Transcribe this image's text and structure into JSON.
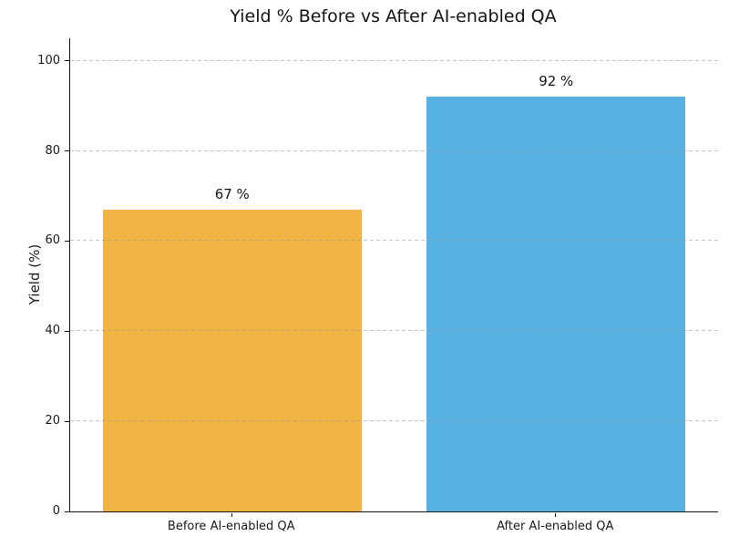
{
  "chart_data": {
    "type": "bar",
    "title": "Yield % Before vs After AI-enabled QA",
    "categories": [
      "Before AI-enabled QA",
      "After AI-enabled QA"
    ],
    "values": [
      67,
      92
    ],
    "value_labels": [
      "67 %",
      "92 %"
    ],
    "bar_colors": [
      "#F2B444",
      "#57B1E2"
    ],
    "xlabel": "",
    "ylabel": "Yield (%)",
    "ylim": [
      0,
      105
    ],
    "yticks": [
      0,
      20,
      40,
      60,
      80,
      100
    ],
    "bar_width_fraction": 0.8,
    "grid": {
      "axis": "y",
      "style": "dashed",
      "color": "#c9c9c9",
      "drawn_above_bars": true
    },
    "legend": "none",
    "axis_color": "#141414",
    "text_color": "#1a1a1a",
    "background": "#ffffff"
  }
}
